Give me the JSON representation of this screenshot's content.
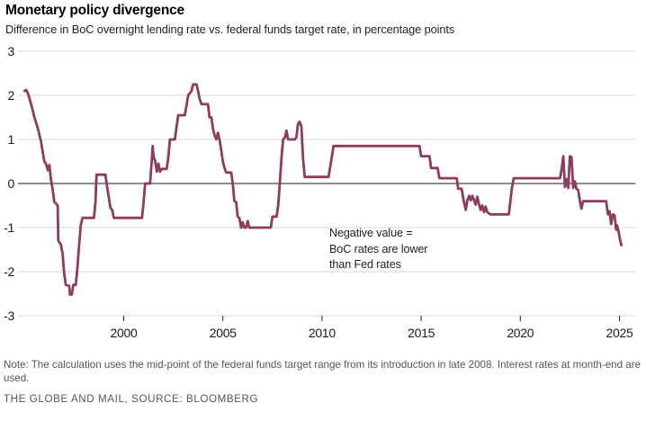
{
  "header": {
    "title": "Monetary policy divergence",
    "subtitle": "Difference in BoC overnight lending rate vs. federal funds target rate, in percentage points"
  },
  "annotation": {
    "lines": [
      "Negative value =",
      "BoC rates are lower",
      "than Fed rates"
    ]
  },
  "footer": {
    "note": "Note: The calculation uses the mid-point of the federal funds target range from its introduction in late 2008. Interest rates at month-end are used.",
    "source": "THE GLOBE AND MAIL, SOURCE: BLOOMBERG"
  },
  "chart_data": {
    "type": "line",
    "title": "Monetary policy divergence",
    "subtitle": "Difference in BoC overnight lending rate vs. federal funds target rate, in percentage points",
    "xlabel": "",
    "ylabel": "percentage points",
    "xlim": [
      1994.7,
      2025.8
    ],
    "ylim": [
      -3,
      3
    ],
    "x_ticks": [
      2000,
      2005,
      2010,
      2015,
      2020,
      2025
    ],
    "y_ticks": [
      3,
      2,
      1,
      0,
      -1,
      -2,
      -3
    ],
    "grid": true,
    "zero_line": true,
    "legend": "none",
    "line_color": "#8e3b5e",
    "series": [
      {
        "name": "BoC overnight lending rate minus federal funds target rate (percentage points)",
        "points": [
          [
            1995.0,
            2.1
          ],
          [
            1995.08,
            2.12
          ],
          [
            1995.17,
            2.05
          ],
          [
            1995.33,
            1.8
          ],
          [
            1995.5,
            1.5
          ],
          [
            1995.67,
            1.25
          ],
          [
            1995.83,
            0.95
          ],
          [
            1995.92,
            0.7
          ],
          [
            1996.0,
            0.5
          ],
          [
            1996.08,
            0.45
          ],
          [
            1996.17,
            0.3
          ],
          [
            1996.25,
            0.42
          ],
          [
            1996.33,
            0.1
          ],
          [
            1996.42,
            -0.15
          ],
          [
            1996.5,
            -0.42
          ],
          [
            1996.58,
            -0.45
          ],
          [
            1996.67,
            -0.5
          ],
          [
            1996.7,
            -1.3
          ],
          [
            1996.83,
            -1.38
          ],
          [
            1996.92,
            -1.6
          ],
          [
            1997.0,
            -2.05
          ],
          [
            1997.08,
            -2.3
          ],
          [
            1997.25,
            -2.32
          ],
          [
            1997.29,
            -2.52
          ],
          [
            1997.38,
            -2.52
          ],
          [
            1997.46,
            -2.3
          ],
          [
            1997.58,
            -2.3
          ],
          [
            1997.67,
            -1.9
          ],
          [
            1997.75,
            -1.4
          ],
          [
            1997.83,
            -0.95
          ],
          [
            1997.92,
            -0.78
          ],
          [
            1998.5,
            -0.78
          ],
          [
            1998.58,
            -0.4
          ],
          [
            1998.63,
            0.2
          ],
          [
            1999.08,
            0.2
          ],
          [
            1999.17,
            -0.1
          ],
          [
            1999.25,
            -0.32
          ],
          [
            1999.33,
            -0.55
          ],
          [
            1999.42,
            -0.6
          ],
          [
            1999.5,
            -0.78
          ],
          [
            2000.92,
            -0.78
          ],
          [
            2001.0,
            -0.45
          ],
          [
            2001.08,
            0.0
          ],
          [
            2001.33,
            0.0
          ],
          [
            2001.42,
            0.55
          ],
          [
            2001.46,
            0.85
          ],
          [
            2001.5,
            0.62
          ],
          [
            2001.58,
            0.52
          ],
          [
            2001.67,
            0.27
          ],
          [
            2001.75,
            0.45
          ],
          [
            2001.83,
            0.27
          ],
          [
            2001.92,
            0.33
          ],
          [
            2002.17,
            0.33
          ],
          [
            2002.25,
            0.6
          ],
          [
            2002.33,
            1.0
          ],
          [
            2002.58,
            1.0
          ],
          [
            2002.67,
            1.3
          ],
          [
            2002.75,
            1.55
          ],
          [
            2003.08,
            1.55
          ],
          [
            2003.17,
            1.78
          ],
          [
            2003.25,
            2.0
          ],
          [
            2003.42,
            2.1
          ],
          [
            2003.5,
            2.25
          ],
          [
            2003.67,
            2.25
          ],
          [
            2003.75,
            2.1
          ],
          [
            2003.83,
            1.92
          ],
          [
            2003.92,
            1.8
          ],
          [
            2004.25,
            1.8
          ],
          [
            2004.33,
            1.5
          ],
          [
            2004.42,
            1.5
          ],
          [
            2004.5,
            1.25
          ],
          [
            2004.58,
            1.1
          ],
          [
            2004.67,
            1.0
          ],
          [
            2004.75,
            1.15
          ],
          [
            2004.83,
            1.0
          ],
          [
            2004.92,
            0.75
          ],
          [
            2005.0,
            0.5
          ],
          [
            2005.08,
            0.35
          ],
          [
            2005.17,
            0.25
          ],
          [
            2005.42,
            0.25
          ],
          [
            2005.5,
            0.0
          ],
          [
            2005.58,
            -0.4
          ],
          [
            2005.67,
            -0.42
          ],
          [
            2005.75,
            -0.75
          ],
          [
            2005.83,
            -0.78
          ],
          [
            2005.92,
            -1.0
          ],
          [
            2006.0,
            -0.88
          ],
          [
            2006.08,
            -1.0
          ],
          [
            2006.17,
            -1.0
          ],
          [
            2006.25,
            -0.85
          ],
          [
            2006.33,
            -1.0
          ],
          [
            2007.42,
            -1.0
          ],
          [
            2007.5,
            -0.75
          ],
          [
            2007.71,
            -0.75
          ],
          [
            2007.79,
            -0.5
          ],
          [
            2007.87,
            0.0
          ],
          [
            2007.96,
            0.6
          ],
          [
            2008.04,
            1.0
          ],
          [
            2008.13,
            1.05
          ],
          [
            2008.21,
            1.2
          ],
          [
            2008.29,
            1.0
          ],
          [
            2008.63,
            1.0
          ],
          [
            2008.71,
            1.05
          ],
          [
            2008.79,
            1.35
          ],
          [
            2008.87,
            1.4
          ],
          [
            2008.96,
            1.3
          ],
          [
            2009.04,
            0.6
          ],
          [
            2009.13,
            0.15
          ],
          [
            2010.33,
            0.15
          ],
          [
            2010.42,
            0.4
          ],
          [
            2010.5,
            0.62
          ],
          [
            2010.58,
            0.85
          ],
          [
            2014.92,
            0.85
          ],
          [
            2015.0,
            0.62
          ],
          [
            2015.42,
            0.62
          ],
          [
            2015.5,
            0.35
          ],
          [
            2015.83,
            0.35
          ],
          [
            2015.92,
            0.12
          ],
          [
            2016.79,
            0.12
          ],
          [
            2016.87,
            -0.12
          ],
          [
            2017.04,
            -0.12
          ],
          [
            2017.13,
            -0.35
          ],
          [
            2017.25,
            -0.6
          ],
          [
            2017.33,
            -0.38
          ],
          [
            2017.42,
            -0.28
          ],
          [
            2017.5,
            -0.38
          ],
          [
            2017.58,
            -0.28
          ],
          [
            2017.67,
            -0.38
          ],
          [
            2017.75,
            -0.48
          ],
          [
            2017.83,
            -0.3
          ],
          [
            2017.92,
            -0.48
          ],
          [
            2018.0,
            -0.6
          ],
          [
            2018.08,
            -0.5
          ],
          [
            2018.17,
            -0.65
          ],
          [
            2018.25,
            -0.52
          ],
          [
            2018.33,
            -0.65
          ],
          [
            2018.5,
            -0.7
          ],
          [
            2019.42,
            -0.7
          ],
          [
            2019.5,
            -0.4
          ],
          [
            2019.58,
            -0.1
          ],
          [
            2019.67,
            0.12
          ],
          [
            2022.0,
            0.12
          ],
          [
            2022.08,
            0.3
          ],
          [
            2022.17,
            0.62
          ],
          [
            2022.25,
            -0.08
          ],
          [
            2022.33,
            0.1
          ],
          [
            2022.42,
            -0.1
          ],
          [
            2022.5,
            0.62
          ],
          [
            2022.58,
            0.6
          ],
          [
            2022.67,
            -0.1
          ],
          [
            2022.75,
            0.05
          ],
          [
            2022.83,
            -0.12
          ],
          [
            2022.92,
            -0.15
          ],
          [
            2023.0,
            -0.38
          ],
          [
            2023.08,
            -0.57
          ],
          [
            2023.17,
            -0.4
          ],
          [
            2024.33,
            -0.4
          ],
          [
            2024.42,
            -0.7
          ],
          [
            2024.5,
            -0.63
          ],
          [
            2024.58,
            -0.92
          ],
          [
            2024.67,
            -0.7
          ],
          [
            2024.75,
            -0.72
          ],
          [
            2024.83,
            -1.05
          ],
          [
            2024.88,
            -0.95
          ],
          [
            2024.96,
            -1.1
          ],
          [
            2025.04,
            -1.3
          ],
          [
            2025.1,
            -1.4
          ]
        ]
      }
    ]
  }
}
